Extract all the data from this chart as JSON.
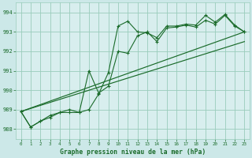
{
  "title": "Graphe pression niveau de la mer (hPa)",
  "background_color": "#cce8e8",
  "plot_bg_color": "#d8eeee",
  "grid_color": "#99ccbb",
  "line_color": "#1a6b2a",
  "xlim": [
    -0.5,
    23.5
  ],
  "ylim": [
    987.5,
    994.5
  ],
  "yticks": [
    988,
    989,
    990,
    991,
    992,
    993,
    994
  ],
  "xticks": [
    0,
    1,
    2,
    3,
    4,
    5,
    6,
    7,
    8,
    9,
    10,
    11,
    12,
    13,
    14,
    15,
    16,
    17,
    18,
    19,
    20,
    21,
    22,
    23
  ],
  "series1_x": [
    0,
    1,
    2,
    3,
    4,
    5,
    6,
    7,
    8,
    9,
    10,
    11,
    12,
    13,
    14,
    15,
    16,
    17,
    18,
    19,
    20,
    21,
    22,
    23
  ],
  "series1_y": [
    988.9,
    988.1,
    988.4,
    988.6,
    988.85,
    988.85,
    988.85,
    989.0,
    989.8,
    990.9,
    993.3,
    993.55,
    993.0,
    992.95,
    992.7,
    993.3,
    993.3,
    993.4,
    993.35,
    993.85,
    993.5,
    993.9,
    993.35,
    993.0
  ],
  "series2_x": [
    0,
    1,
    2,
    3,
    4,
    5,
    6,
    7,
    8,
    9,
    10,
    11,
    12,
    13,
    14,
    15,
    16,
    17,
    18,
    19,
    20,
    21,
    22,
    23
  ],
  "series2_y": [
    988.9,
    988.1,
    988.4,
    988.7,
    988.85,
    989.0,
    988.85,
    991.0,
    989.85,
    990.2,
    992.0,
    991.9,
    992.8,
    993.0,
    992.5,
    993.2,
    993.25,
    993.35,
    993.25,
    993.6,
    993.4,
    993.85,
    993.3,
    993.0
  ],
  "series3_x": [
    0,
    23
  ],
  "series3_y": [
    988.9,
    993.0
  ],
  "series4_x": [
    0,
    23
  ],
  "series4_y": [
    988.9,
    992.5
  ]
}
